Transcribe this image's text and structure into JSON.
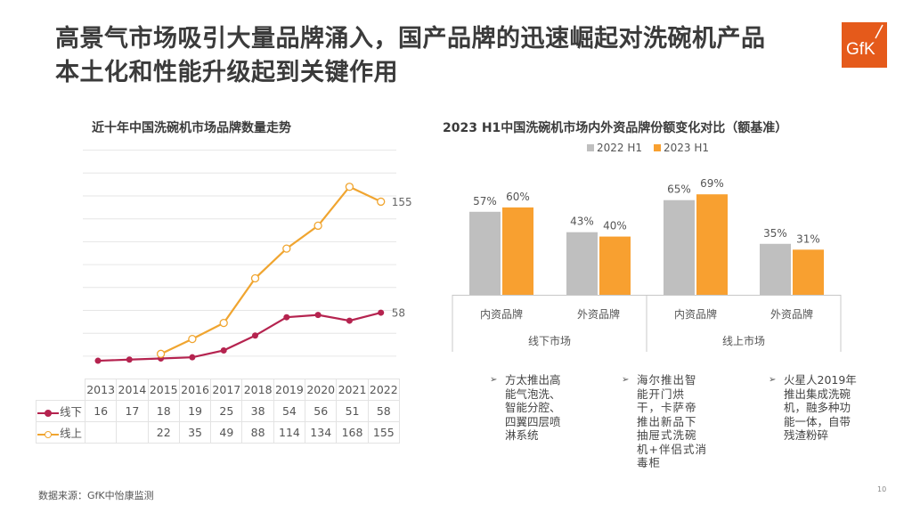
{
  "header": {
    "title_line1": "高景气市场吸引大量品牌涌入，国产品牌的迅速崛起对洗碗机产品",
    "title_line2": "本土化和性能升级起到关键作用",
    "logo_text": "GfK",
    "brand_color": "#e55a1b"
  },
  "chart_data": [
    {
      "type": "line",
      "title": "近十年中国洗碗机市场品牌数量走势",
      "x": [
        "2013",
        "2014",
        "2015",
        "2016",
        "2017",
        "2018",
        "2019",
        "2020",
        "2021",
        "2022"
      ],
      "series": [
        {
          "name": "线下",
          "color": "#b5234f",
          "marker": "filled-circle",
          "values": [
            16,
            17,
            18,
            19,
            25,
            38,
            54,
            56,
            51,
            58
          ],
          "end_label": "58"
        },
        {
          "name": "线上",
          "color": "#f0a530",
          "marker": "hollow-circle",
          "values": [
            null,
            null,
            22,
            35,
            49,
            88,
            114,
            134,
            168,
            155
          ],
          "end_label": "155"
        }
      ],
      "ylim": [
        0,
        200
      ],
      "grid_step": 20,
      "grid": true,
      "legend": "data-table-below",
      "data_table": true
    },
    {
      "type": "bar",
      "title": "2023 H1中国洗碗机市场内外资品牌份额变化对比（额基准）",
      "groups": [
        "线下市场",
        "线上市场"
      ],
      "categories": [
        "内资品牌",
        "外资品牌",
        "内资品牌",
        "外资品牌"
      ],
      "series": [
        {
          "name": "2022 H1",
          "color": "#bfbfbf",
          "values": [
            57,
            43,
            65,
            35
          ]
        },
        {
          "name": "2023 H1",
          "color": "#f8a030",
          "values": [
            60,
            40,
            69,
            31
          ]
        }
      ],
      "value_labels": [
        "57%",
        "60%",
        "43%",
        "40%",
        "65%",
        "69%",
        "35%",
        "31%"
      ],
      "unit": "%",
      "ylim": [
        0,
        75
      ],
      "legend": "top-center",
      "grid": false
    }
  ],
  "table": {
    "rows": [
      {
        "label": "线下",
        "cells": [
          "16",
          "17",
          "18",
          "19",
          "25",
          "38",
          "54",
          "56",
          "51",
          "58"
        ]
      },
      {
        "label": "线上",
        "cells": [
          "",
          "",
          "22",
          "35",
          "49",
          "88",
          "114",
          "134",
          "168",
          "155"
        ]
      }
    ]
  },
  "bullets": [
    {
      "arrow": "➢",
      "text": "方太推出高能气泡洗、智能分腔、四翼四层喷淋系统"
    },
    {
      "arrow": "➢",
      "text": "海尔推出智能开门烘干，卡萨帝推出新品下抽屉式洗碗机+伴侣式消毒柜"
    },
    {
      "arrow": "➢",
      "text": "火星人2019年推出集成洗碗机，融多种功能一体，自带残渣粉碎"
    }
  ],
  "footer": {
    "source": "数据来源：GfK中怡康监测",
    "page_number": "10"
  }
}
